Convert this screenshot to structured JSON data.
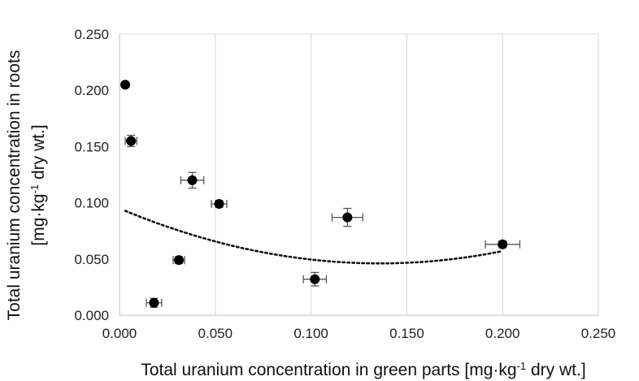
{
  "chart_data": {
    "type": "scatter",
    "title": "",
    "xlabel": "Total uranium concentration in green parts [mg·kg-1 dry wt.]",
    "ylabel": "Total uranium concentration in roots [mg·kg-1 dry wt.]",
    "xlim": [
      0,
      0.25
    ],
    "ylim": [
      0,
      0.25
    ],
    "xticks": [
      "0.000",
      "0.050",
      "0.100",
      "0.150",
      "0.200",
      "0.250"
    ],
    "yticks": [
      "0.000",
      "0.050",
      "0.100",
      "0.150",
      "0.200",
      "0.250"
    ],
    "grid": "vertical",
    "points": [
      {
        "x": 0.003,
        "y": 0.205,
        "xerr": 0.001,
        "yerr": 0.002
      },
      {
        "x": 0.006,
        "y": 0.155,
        "xerr": 0.003,
        "yerr": 0.005
      },
      {
        "x": 0.018,
        "y": 0.011,
        "xerr": 0.004,
        "yerr": 0.004
      },
      {
        "x": 0.031,
        "y": 0.049,
        "xerr": 0.003,
        "yerr": 0.003
      },
      {
        "x": 0.038,
        "y": 0.12,
        "xerr": 0.006,
        "yerr": 0.007
      },
      {
        "x": 0.052,
        "y": 0.099,
        "xerr": 0.004,
        "yerr": 0.003
      },
      {
        "x": 0.102,
        "y": 0.032,
        "xerr": 0.006,
        "yerr": 0.006
      },
      {
        "x": 0.119,
        "y": 0.087,
        "xerr": 0.008,
        "yerr": 0.008
      },
      {
        "x": 0.2,
        "y": 0.063,
        "xerr": 0.009,
        "yerr": 0.003
      }
    ],
    "trendline": {
      "type": "polynomial",
      "order": 2,
      "style": "dotted",
      "x_range": [
        0.003,
        0.2
      ],
      "coefficients": [
        2.65,
        -0.72,
        0.095
      ]
    }
  }
}
